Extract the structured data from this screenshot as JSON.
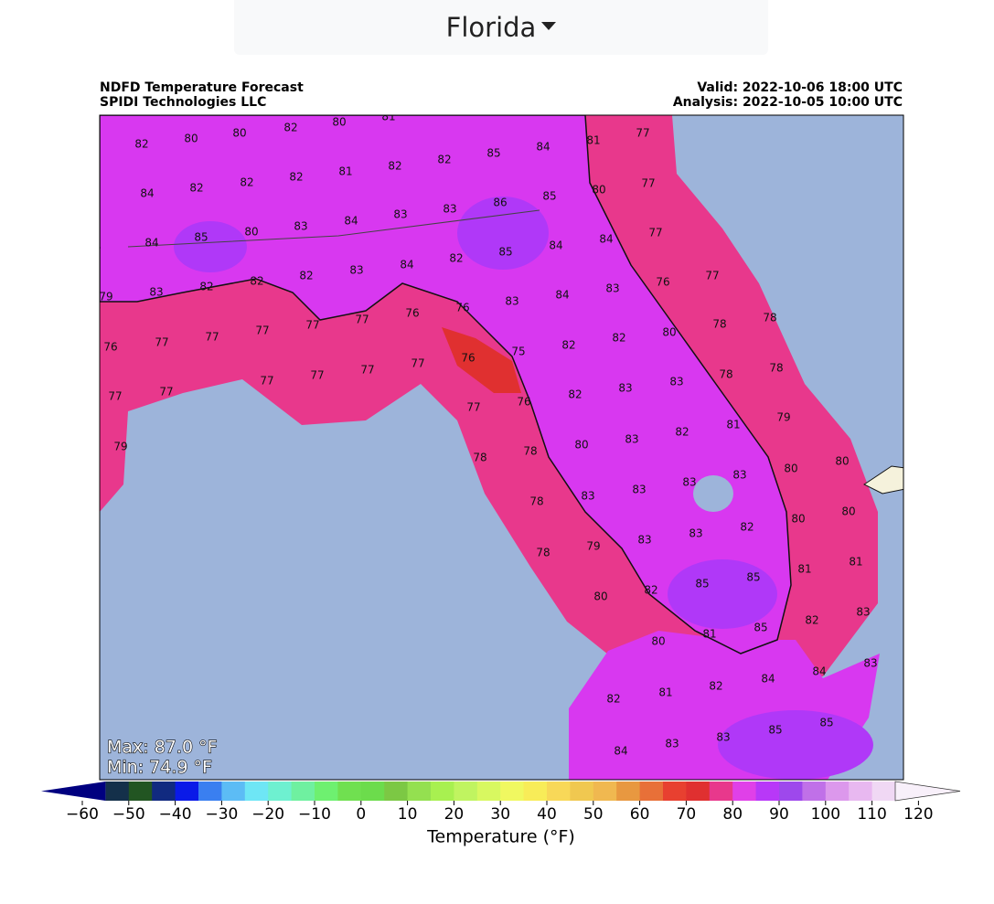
{
  "header": {
    "dropdown": "Florida"
  },
  "map": {
    "title": "NDFD Temperature Forecast",
    "subtitle": "SPIDI Technologies LLC",
    "valid": "Valid: 2022-10-06 18:00 UTC",
    "analysis": "Analysis: 2022-10-05 10:00 UTC",
    "max": "Max: 87.0 °F",
    "min": "Min: 74.9 °F",
    "labels": [
      82,
      80,
      81,
      82,
      80,
      80,
      85,
      84,
      81,
      77,
      81,
      82,
      82,
      82,
      82,
      82,
      84,
      83,
      85,
      80,
      77,
      86,
      83,
      83,
      84,
      83,
      80,
      85,
      84,
      84,
      77,
      84,
      84,
      85,
      82,
      84,
      83,
      82,
      82,
      82,
      83,
      79,
      77,
      76,
      83,
      84,
      83,
      76,
      76,
      77,
      77,
      77,
      77,
      77,
      76,
      78,
      78,
      80,
      82,
      82,
      75,
      76,
      77,
      77,
      77,
      77,
      77,
      77,
      78,
      78,
      83,
      83,
      82,
      76,
      77,
      79,
      81,
      82,
      83,
      80,
      78,
      78,
      79,
      80,
      80,
      83,
      83,
      83,
      83,
      78,
      80,
      80,
      82,
      83,
      83,
      79,
      78,
      81,
      81,
      85,
      85,
      82,
      80,
      83,
      82,
      85,
      81,
      80,
      83,
      84,
      84,
      82,
      81,
      82,
      85,
      85,
      83,
      83,
      84
    ]
  },
  "colorbar": {
    "label": "Temperature (°F)",
    "ticks": [
      {
        "value": -60,
        "label": "−60"
      },
      {
        "value": -50,
        "label": "−50"
      },
      {
        "value": -40,
        "label": "−40"
      },
      {
        "value": -30,
        "label": "−30"
      },
      {
        "value": -20,
        "label": "−20"
      },
      {
        "value": -10,
        "label": "−10"
      },
      0,
      10,
      20,
      30,
      40,
      50,
      60,
      70,
      80,
      90,
      100,
      110,
      120
    ],
    "range": [
      -55,
      115
    ],
    "colors": [
      "#14304a",
      "#225522",
      "#112a80",
      "#0a1ae8",
      "#3a7ff0",
      "#5cbcf5",
      "#6ee6f5",
      "#6ef0d0",
      "#6ff0a0",
      "#6ef070",
      "#70e050",
      "#6cdc4c",
      "#7cc844",
      "#94e050",
      "#a8f050",
      "#c0f460",
      "#d8f860",
      "#f0f860",
      "#f8ec58",
      "#f8d858",
      "#f0c850",
      "#f0b850",
      "#e89840",
      "#e87038",
      "#e84030",
      "#e03030",
      "#e8388c",
      "#e040e8",
      "#b838f8",
      "#9e48ec",
      "#c070e8",
      "#dc98ec",
      "#e8b8f0",
      "#f0d8f4"
    ],
    "under_color": "#000080",
    "over_color": "#f8f0fa"
  }
}
